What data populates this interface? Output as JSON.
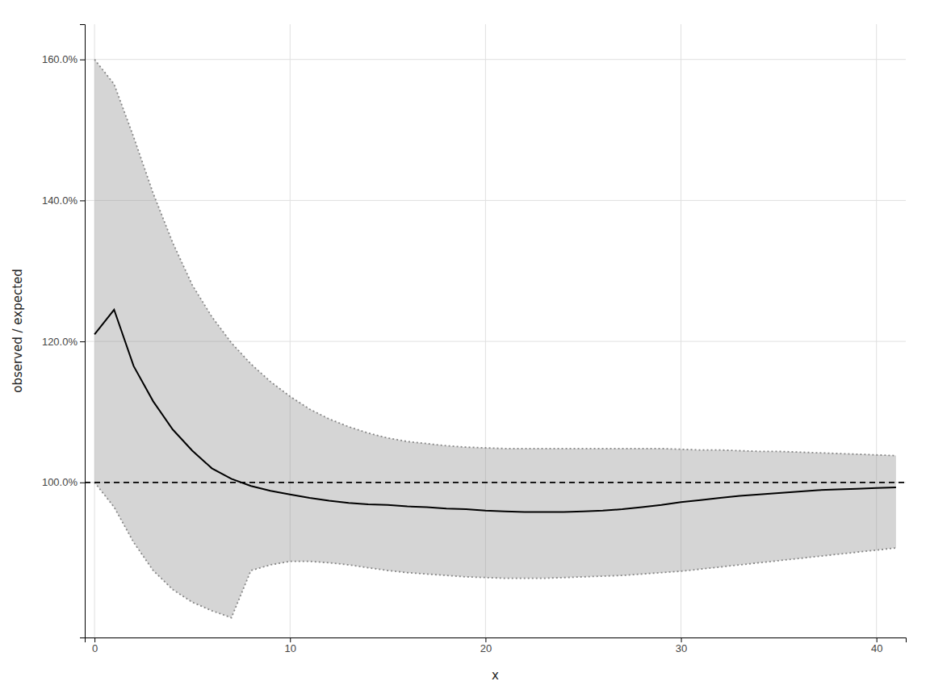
{
  "chart_data": {
    "type": "line",
    "xlabel": "x",
    "ylabel": "observed / expected",
    "x": [
      0,
      1,
      2,
      3,
      4,
      5,
      6,
      7,
      8,
      9,
      10,
      11,
      12,
      13,
      14,
      15,
      16,
      17,
      18,
      19,
      20,
      21,
      22,
      23,
      24,
      25,
      26,
      27,
      28,
      29,
      30,
      31,
      32,
      33,
      34,
      35,
      36,
      37,
      38,
      39,
      40,
      41
    ],
    "series": [
      {
        "type": "band",
        "color": "#888888",
        "line_style": "dotted",
        "upper": [
          1.6,
          1.565,
          1.49,
          1.41,
          1.34,
          1.28,
          1.235,
          1.198,
          1.168,
          1.143,
          1.122,
          1.104,
          1.09,
          1.079,
          1.07,
          1.063,
          1.058,
          1.055,
          1.052,
          1.05,
          1.049,
          1.048,
          1.048,
          1.048,
          1.048,
          1.048,
          1.048,
          1.048,
          1.048,
          1.048,
          1.047,
          1.046,
          1.046,
          1.045,
          1.044,
          1.044,
          1.043,
          1.042,
          1.041,
          1.04,
          1.039,
          1.038
        ],
        "lower": [
          1.0,
          0.965,
          0.915,
          0.875,
          0.848,
          0.83,
          0.818,
          0.808,
          0.875,
          0.883,
          0.888,
          0.888,
          0.886,
          0.883,
          0.879,
          0.875,
          0.872,
          0.87,
          0.868,
          0.866,
          0.865,
          0.864,
          0.864,
          0.864,
          0.865,
          0.866,
          0.867,
          0.868,
          0.87,
          0.872,
          0.874,
          0.877,
          0.88,
          0.883,
          0.886,
          0.889,
          0.892,
          0.895,
          0.898,
          0.901,
          0.904,
          0.907
        ]
      },
      {
        "type": "line",
        "color": "#000000",
        "line_style": "solid",
        "values": [
          1.21,
          1.245,
          1.165,
          1.115,
          1.075,
          1.045,
          1.02,
          1.005,
          0.995,
          0.988,
          0.983,
          0.978,
          0.974,
          0.971,
          0.969,
          0.968,
          0.966,
          0.965,
          0.963,
          0.962,
          0.96,
          0.959,
          0.958,
          0.958,
          0.958,
          0.959,
          0.96,
          0.962,
          0.965,
          0.968,
          0.972,
          0.975,
          0.978,
          0.981,
          0.983,
          0.985,
          0.987,
          0.989,
          0.99,
          0.991,
          0.992,
          0.993
        ]
      }
    ],
    "reference_line": {
      "value": 1.0,
      "color": "#000000",
      "line_style": "dashed"
    },
    "xlim": [
      -0.5,
      41.5
    ],
    "ylim": [
      0.78,
      1.65
    ],
    "xticks": [
      0,
      10,
      20,
      30,
      40
    ],
    "yticks": [
      {
        "value": 1.0,
        "label": "100.0%"
      },
      {
        "value": 1.2,
        "label": "120.0%"
      },
      {
        "value": 1.4,
        "label": "140.0%"
      },
      {
        "value": 1.6,
        "label": "160.0%"
      }
    ],
    "grid": true
  }
}
